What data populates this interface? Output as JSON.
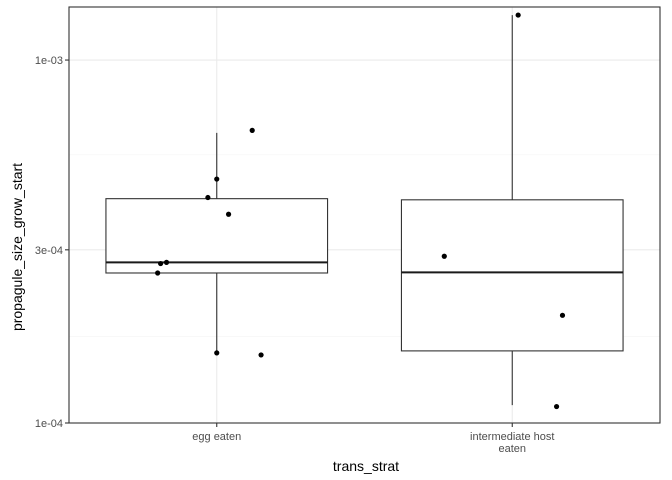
{
  "chart_data": {
    "type": "boxplot",
    "title": "",
    "xlabel": "trans_strat",
    "ylabel": "propagule_size_grow_start",
    "y_scale": "log10",
    "ylim": [
      0.0001,
      0.0014
    ],
    "y_ticks": [
      {
        "value": 0.0001,
        "label": "1e-04"
      },
      {
        "value": 0.0003,
        "label": "3e-04"
      },
      {
        "value": 0.001,
        "label": "1e-03"
      }
    ],
    "y_minor_gridlines": [
      0.000173,
      0.000548
    ],
    "grid": true,
    "categories": [
      {
        "label_lines": [
          "egg eaten"
        ],
        "label": "egg eaten"
      },
      {
        "label_lines": [
          "intermediate host",
          "eaten"
        ],
        "label": "intermediate host eaten"
      }
    ],
    "boxes": [
      {
        "category": "egg eaten",
        "whisker_low": 0.000155,
        "q1": 0.000259,
        "median": 0.000277,
        "q3": 0.000415,
        "whisker_high": 0.00063,
        "points": [
          {
            "x_offset": 0.12,
            "y": 0.00064
          },
          {
            "x_offset": 0.0,
            "y": 0.00047
          },
          {
            "x_offset": -0.03,
            "y": 0.000418
          },
          {
            "x_offset": 0.04,
            "y": 0.000376
          },
          {
            "x_offset": -0.19,
            "y": 0.000275
          },
          {
            "x_offset": -0.17,
            "y": 0.000277
          },
          {
            "x_offset": -0.2,
            "y": 0.000259
          },
          {
            "x_offset": 0.0,
            "y": 0.000156
          },
          {
            "x_offset": 0.15,
            "y": 0.000154
          }
        ]
      },
      {
        "category": "intermediate host eaten",
        "whisker_low": 0.000112,
        "q1": 0.000158,
        "median": 0.00026,
        "q3": 0.000412,
        "whisker_high": 0.00133,
        "points": [
          {
            "x_offset": 0.02,
            "y": 0.00133
          },
          {
            "x_offset": -0.23,
            "y": 0.000288
          },
          {
            "x_offset": 0.17,
            "y": 0.000198
          },
          {
            "x_offset": 0.15,
            "y": 0.000111
          }
        ]
      }
    ],
    "colors": {
      "background": "#ffffff",
      "panel_border": "#333333",
      "grid_major": "#ebebeb",
      "grid_minor": "#f5f5f5",
      "box_fill": "#ffffff",
      "box_line": "#333333",
      "median_line": "#1a1a1a",
      "point": "#000000",
      "tick_label": "#4d4d4d"
    }
  }
}
